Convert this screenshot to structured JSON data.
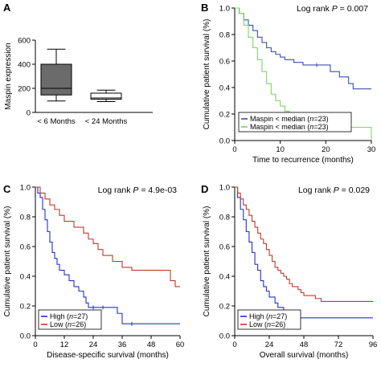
{
  "chart_data": [
    {
      "panel": "A",
      "type": "box",
      "xlabel": "",
      "ylabel": "Maspin expression",
      "ylim": [
        0,
        600
      ],
      "yticks": [
        "0",
        "200",
        "400",
        "600"
      ],
      "categories": [
        "< 6 Months",
        "< 24 Months"
      ],
      "boxes": [
        {
          "min": 95,
          "q1": 145,
          "median": 200,
          "q3": 400,
          "max": 525,
          "color": "#6b6b6b"
        },
        {
          "min": 90,
          "q1": 110,
          "median": 120,
          "q3": 160,
          "max": 185,
          "color": "#ffffff"
        }
      ],
      "grid": false
    },
    {
      "panel": "B",
      "type": "line",
      "step": true,
      "xlabel": "Time to recurrence (months)",
      "ylabel": "Cumulative patient survival (%)",
      "xlim": [
        0,
        30
      ],
      "ylim": [
        0,
        1
      ],
      "xticks": [
        "0",
        "10",
        "20",
        "30"
      ],
      "yticks": [
        "0.0",
        "0.2",
        "0.4",
        "0.6",
        "0.8",
        "1.0"
      ],
      "annotation": {
        "prefix": "Log rank ",
        "p": "P",
        "value": " = 0.007"
      },
      "legend_position": "bottom-left",
      "series": [
        {
          "name": "Maspin < median (n=23)",
          "legend_prefix": "Maspin < median (",
          "legend_n": "n",
          "legend_suffix": "=23)",
          "color": "#3b4fb0",
          "x": [
            0,
            1,
            2,
            3,
            4,
            5,
            6,
            7,
            8,
            9,
            10,
            11,
            13,
            15,
            18,
            21,
            23,
            25,
            26,
            27,
            30
          ],
          "y": [
            1.0,
            0.96,
            0.91,
            0.87,
            0.83,
            0.78,
            0.74,
            0.7,
            0.67,
            0.65,
            0.63,
            0.61,
            0.59,
            0.57,
            0.57,
            0.52,
            0.48,
            0.43,
            0.39,
            0.39,
            0.39
          ]
        },
        {
          "name": "Maspin < median (n=23)",
          "legend_prefix": "Maspin < median (",
          "legend_n": "n",
          "legend_suffix": "=23)",
          "color": "#7fd36a",
          "x": [
            0,
            1,
            2,
            3,
            4,
            5,
            6,
            7,
            8,
            9,
            10,
            11,
            12,
            13,
            16,
            29,
            30
          ],
          "y": [
            1.0,
            0.96,
            0.87,
            0.78,
            0.7,
            0.61,
            0.52,
            0.43,
            0.35,
            0.3,
            0.26,
            0.22,
            0.17,
            0.13,
            0.1,
            0.1,
            0.0
          ]
        }
      ]
    },
    {
      "panel": "C",
      "type": "line",
      "step": true,
      "xlabel": "Disease-specific survival (months)",
      "ylabel": "Cumulative patient survival (%)",
      "xlim": [
        0,
        60
      ],
      "ylim": [
        0,
        1
      ],
      "xticks": [
        "0",
        "12",
        "24",
        "36",
        "48",
        "60"
      ],
      "yticks": [
        "0.0",
        "0.2",
        "0.4",
        "0.6",
        "0.8",
        "1.0"
      ],
      "annotation": {
        "prefix": "Log rank ",
        "p": "P",
        "value": " = 4.9e-03"
      },
      "legend_position": "bottom-left",
      "series": [
        {
          "name": "High (n=27)",
          "legend_prefix": "High (",
          "legend_n": "n",
          "legend_suffix": "=27)",
          "color": "#2233c8",
          "x": [
            0,
            1,
            2,
            3,
            4,
            5,
            6,
            7,
            8,
            9,
            10,
            12,
            14,
            16,
            18,
            20,
            21,
            22,
            24,
            26,
            28,
            30,
            34,
            36,
            40,
            60
          ],
          "y": [
            1.0,
            0.96,
            0.93,
            0.85,
            0.78,
            0.7,
            0.63,
            0.56,
            0.52,
            0.48,
            0.44,
            0.41,
            0.37,
            0.33,
            0.3,
            0.26,
            0.22,
            0.19,
            0.19,
            0.19,
            0.19,
            0.19,
            0.15,
            0.08,
            0.08,
            0.08
          ]
        },
        {
          "name": "Low (n=26)",
          "legend_prefix": "Low (",
          "legend_n": "n",
          "legend_suffix": "=26)",
          "color": "#c0392b",
          "x": [
            0,
            2,
            4,
            6,
            8,
            10,
            12,
            14,
            16,
            18,
            20,
            22,
            24,
            26,
            28,
            30,
            32,
            34,
            36,
            38,
            40,
            46,
            56,
            58,
            60
          ],
          "y": [
            1.0,
            0.96,
            0.92,
            0.88,
            0.85,
            0.81,
            0.77,
            0.77,
            0.73,
            0.73,
            0.69,
            0.65,
            0.62,
            0.58,
            0.54,
            0.54,
            0.5,
            0.5,
            0.46,
            0.46,
            0.44,
            0.44,
            0.37,
            0.33,
            0.33
          ]
        }
      ]
    },
    {
      "panel": "D",
      "type": "line",
      "step": true,
      "xlabel": "Overall survival (months)",
      "ylabel": "Cumulative patient survival (%)",
      "xlim": [
        0,
        96
      ],
      "ylim": [
        0,
        1
      ],
      "xticks": [
        "0",
        "24",
        "48",
        "72",
        "96"
      ],
      "yticks": [
        "0.0",
        "0.2",
        "0.4",
        "0.6",
        "0.8",
        "1.0"
      ],
      "annotation": {
        "prefix": "Log rank ",
        "p": "P",
        "value": " = 0.029"
      },
      "legend_position": "bottom-left",
      "series": [
        {
          "name": "High (n=27)",
          "legend_prefix": "High (",
          "legend_n": "n",
          "legend_suffix": "=27)",
          "color": "#2233c8",
          "x": [
            0,
            2,
            4,
            6,
            8,
            10,
            12,
            14,
            16,
            18,
            20,
            22,
            24,
            28,
            30,
            34,
            36,
            96
          ],
          "y": [
            1.0,
            0.93,
            0.85,
            0.78,
            0.7,
            0.63,
            0.56,
            0.48,
            0.44,
            0.37,
            0.33,
            0.3,
            0.26,
            0.22,
            0.19,
            0.15,
            0.12,
            0.12
          ]
        },
        {
          "name": "Low (n=26)",
          "legend_prefix": "Low (",
          "legend_n": "n",
          "legend_suffix": "=26)",
          "color": "#c0392b",
          "x": [
            0,
            2,
            4,
            6,
            8,
            10,
            12,
            14,
            16,
            18,
            20,
            22,
            24,
            26,
            28,
            30,
            32,
            34,
            36,
            38,
            40,
            44,
            46,
            48,
            56,
            60,
            96
          ],
          "y": [
            1.0,
            0.96,
            0.92,
            0.88,
            0.85,
            0.81,
            0.77,
            0.73,
            0.69,
            0.65,
            0.62,
            0.58,
            0.54,
            0.5,
            0.46,
            0.44,
            0.42,
            0.4,
            0.38,
            0.35,
            0.33,
            0.31,
            0.29,
            0.27,
            0.25,
            0.23,
            0.23
          ]
        }
      ]
    }
  ]
}
